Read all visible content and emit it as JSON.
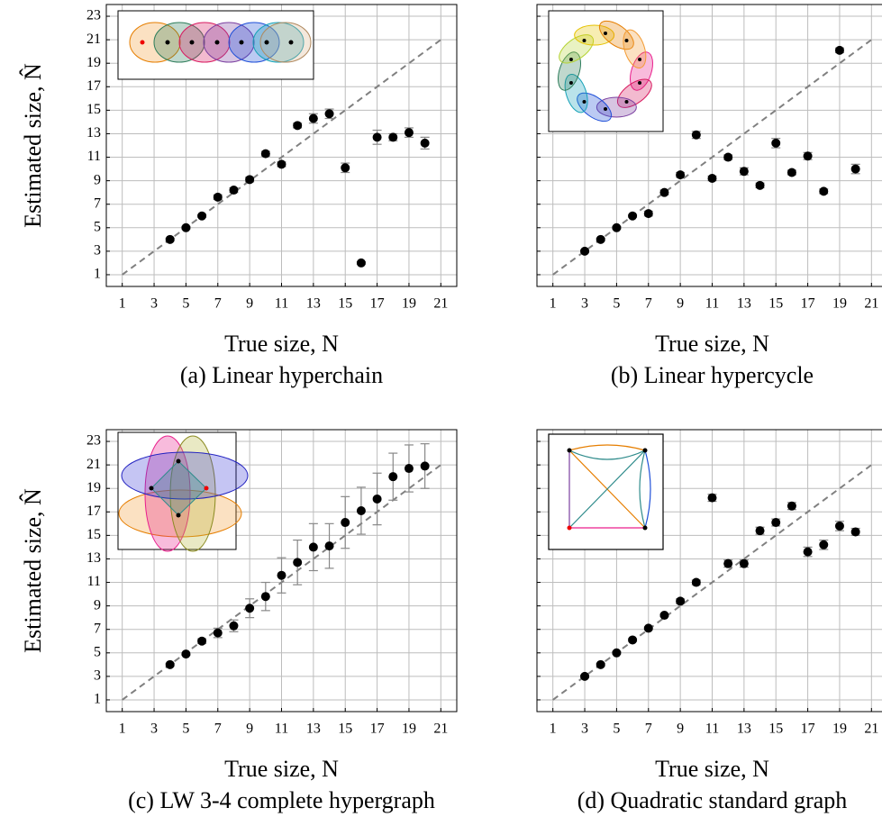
{
  "chart_data": [
    {
      "type": "scatter",
      "caption": "(a) Linear hyperchain",
      "xlabel": "True size, N",
      "ylabel": "Estimated size, N̂",
      "show_ytick_labels": true,
      "x": [
        4,
        5,
        6,
        7,
        8,
        9,
        10,
        11,
        12,
        13,
        14,
        15,
        16,
        17,
        18,
        19,
        20
      ],
      "values": [
        4,
        5,
        6,
        7.6,
        8.2,
        9.1,
        11.3,
        10.4,
        13.7,
        14.3,
        14.7,
        10.1,
        2,
        12.7,
        12.7,
        13.1,
        12.2
      ],
      "errors": [
        0.1,
        0.1,
        0.1,
        0.2,
        0.2,
        0.2,
        0.2,
        0.2,
        0.2,
        0.4,
        0.4,
        0.4,
        0.1,
        0.6,
        0.3,
        0.4,
        0.5
      ],
      "reference_line": {
        "x": [
          1,
          21
        ],
        "values": [
          1,
          21
        ]
      },
      "xlim": [
        0,
        22
      ],
      "ylim": [
        0,
        24
      ],
      "xticks": [
        1,
        3,
        5,
        7,
        9,
        11,
        13,
        15,
        17,
        19,
        21
      ],
      "yticks": [
        1,
        3,
        5,
        7,
        9,
        11,
        13,
        15,
        17,
        19,
        21,
        23
      ],
      "grid": true,
      "color": "#000000"
    },
    {
      "type": "scatter",
      "caption": "(b) Linear hypercycle",
      "xlabel": "True size, N",
      "ylabel": "Estimated size, N̂",
      "show_ytick_labels": false,
      "x": [
        3,
        4,
        5,
        6,
        7,
        8,
        9,
        10,
        11,
        12,
        13,
        14,
        15,
        16,
        17,
        18,
        19,
        20
      ],
      "values": [
        3,
        4,
        5,
        6,
        6.2,
        8,
        9.5,
        12.9,
        9.2,
        11,
        9.8,
        8.6,
        12.2,
        9.7,
        11.1,
        8.1,
        20.1,
        10
      ],
      "errors": [
        0.1,
        0.1,
        0.1,
        0.1,
        0.2,
        0.2,
        0.2,
        0.3,
        0.2,
        0.2,
        0.3,
        0.2,
        0.4,
        0.2,
        0.3,
        0.2,
        0.2,
        0.4
      ],
      "reference_line": {
        "x": [
          1,
          21
        ],
        "values": [
          1,
          21
        ]
      },
      "xlim": [
        0,
        22
      ],
      "ylim": [
        0,
        24
      ],
      "xticks": [
        1,
        3,
        5,
        7,
        9,
        11,
        13,
        15,
        17,
        19,
        21
      ],
      "yticks": [
        1,
        3,
        5,
        7,
        9,
        11,
        13,
        15,
        17,
        19,
        21,
        23
      ],
      "grid": true,
      "color": "#000000"
    },
    {
      "type": "scatter",
      "caption": "(c) LW 3-4 complete hypergraph",
      "xlabel": "True size, N",
      "ylabel": "Estimated size, N̂",
      "show_ytick_labels": true,
      "x": [
        4,
        5,
        6,
        7,
        8,
        9,
        10,
        11,
        12,
        13,
        14,
        15,
        16,
        17,
        18,
        19,
        20
      ],
      "values": [
        4,
        4.9,
        6,
        6.7,
        7.3,
        8.8,
        9.8,
        11.6,
        12.7,
        14,
        14.1,
        16.1,
        17.1,
        18.1,
        20,
        20.7,
        20.9
      ],
      "errors": [
        0.1,
        0.1,
        0.2,
        0.4,
        0.5,
        0.8,
        1.2,
        1.5,
        1.9,
        2,
        1.9,
        2.2,
        2,
        2.2,
        2,
        2,
        1.9
      ],
      "reference_line": {
        "x": [
          1,
          21
        ],
        "values": [
          1,
          21
        ]
      },
      "xlim": [
        0,
        22
      ],
      "ylim": [
        0,
        24
      ],
      "xticks": [
        1,
        3,
        5,
        7,
        9,
        11,
        13,
        15,
        17,
        19,
        21
      ],
      "yticks": [
        1,
        3,
        5,
        7,
        9,
        11,
        13,
        15,
        17,
        19,
        21,
        23
      ],
      "grid": true,
      "color": "#000000"
    },
    {
      "type": "scatter",
      "caption": "(d) Quadratic standard graph",
      "xlabel": "True size, N",
      "ylabel": "Estimated size, N̂",
      "show_ytick_labels": false,
      "x": [
        3,
        4,
        5,
        6,
        7,
        8,
        9,
        10,
        11,
        12,
        13,
        14,
        15,
        16,
        17,
        18,
        19,
        20
      ],
      "values": [
        3,
        4,
        5,
        6.1,
        7.1,
        8.2,
        9.4,
        11,
        18.2,
        12.6,
        12.6,
        15.4,
        16.1,
        17.5,
        13.6,
        14.2,
        15.8,
        15.3
      ],
      "errors": [
        0.1,
        0.1,
        0.1,
        0.1,
        0.1,
        0.1,
        0.2,
        0.2,
        0.3,
        0.3,
        0.3,
        0.3,
        0.3,
        0.3,
        0.4,
        0.4,
        0.4,
        0.3
      ],
      "reference_line": {
        "x": [
          1,
          21
        ],
        "values": [
          1,
          21
        ]
      },
      "xlim": [
        0,
        22
      ],
      "ylim": [
        0,
        24
      ],
      "xticks": [
        1,
        3,
        5,
        7,
        9,
        11,
        13,
        15,
        17,
        19,
        21
      ],
      "yticks": [
        1,
        3,
        5,
        7,
        9,
        11,
        13,
        15,
        17,
        19,
        21,
        23
      ],
      "grid": true,
      "color": "#000000"
    }
  ]
}
